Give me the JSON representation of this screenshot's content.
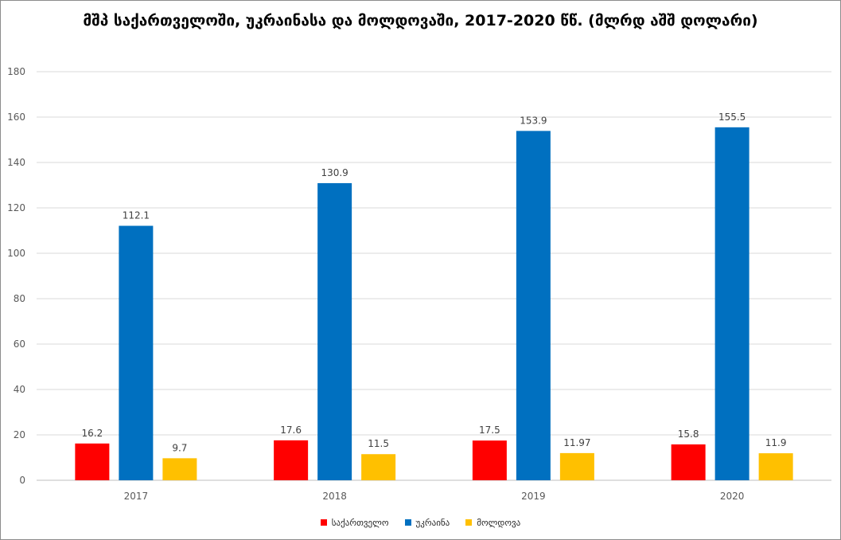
{
  "chart_data": {
    "type": "bar",
    "title": "მშპ საქართველოში, უკრაინასა და მოლდოვაში, 2017-2020 წწ. (მლრდ აშშ დოლარი)",
    "categories": [
      "2017",
      "2018",
      "2019",
      "2020"
    ],
    "series": [
      {
        "name": "საქართველო",
        "values": [
          16.2,
          17.6,
          17.5,
          15.8
        ],
        "labels": [
          "16.2",
          "17.6",
          "17.5",
          "15.8"
        ],
        "color": "#ff0000"
      },
      {
        "name": "უკრაინა",
        "values": [
          112.1,
          130.9,
          153.9,
          155.5
        ],
        "labels": [
          "112.1",
          "130.9",
          "153.9",
          "155.5"
        ],
        "color": "#0070c0"
      },
      {
        "name": "მოლდოვა",
        "values": [
          9.7,
          11.5,
          11.97,
          11.9
        ],
        "labels": [
          "9.7",
          "11.5",
          "11.97",
          "11.9"
        ],
        "color": "#ffc000"
      }
    ],
    "ylim": [
      0,
      180
    ],
    "yticks": [
      "0",
      "20",
      "40",
      "60",
      "80",
      "100",
      "120",
      "140",
      "160",
      "180"
    ],
    "grid": true,
    "legend_position": "bottom"
  }
}
